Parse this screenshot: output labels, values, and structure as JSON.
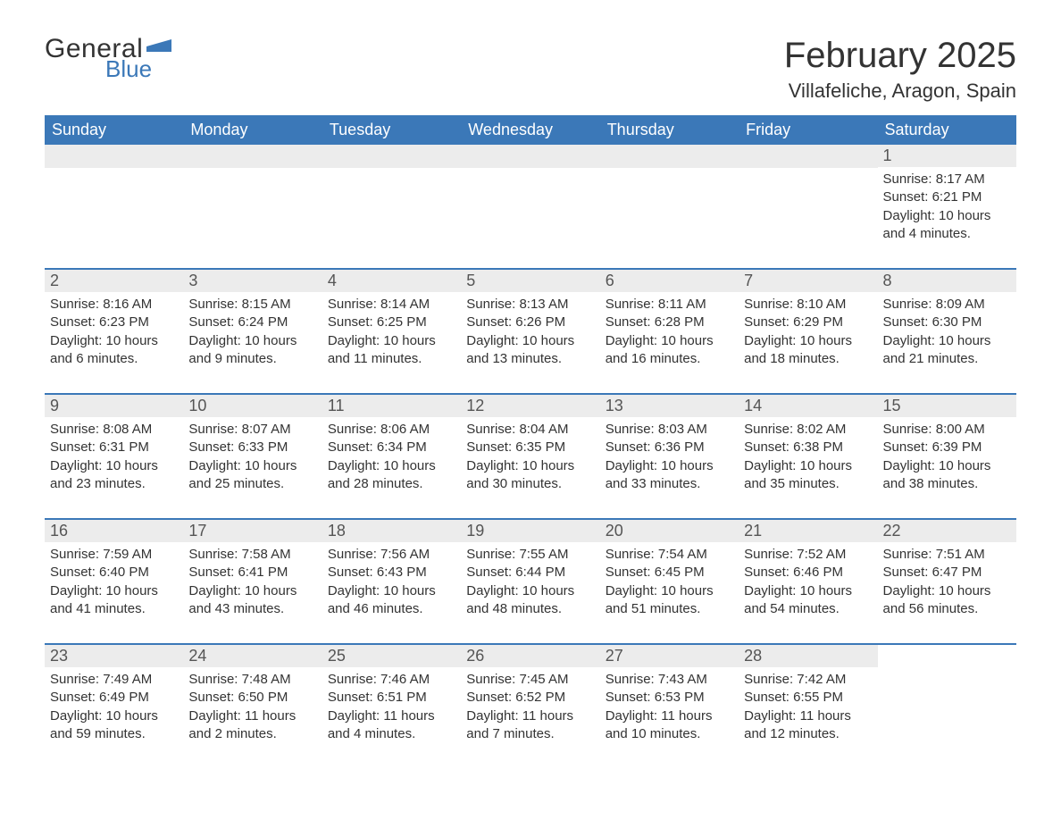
{
  "logo": {
    "text1": "General",
    "text2": "Blue",
    "flag_color": "#3b78b8"
  },
  "title": "February 2025",
  "location": "Villafeliche, Aragon, Spain",
  "colors": {
    "header_bg": "#3b78b8",
    "header_text": "#ffffff",
    "daynum_bg": "#ececec",
    "text": "#333333",
    "row_border": "#3b78b8"
  },
  "day_headers": [
    "Sunday",
    "Monday",
    "Tuesday",
    "Wednesday",
    "Thursday",
    "Friday",
    "Saturday"
  ],
  "weeks": [
    [
      null,
      null,
      null,
      null,
      null,
      null,
      {
        "n": "1",
        "sr": "Sunrise: 8:17 AM",
        "ss": "Sunset: 6:21 PM",
        "dl": "Daylight: 10 hours and 4 minutes."
      }
    ],
    [
      {
        "n": "2",
        "sr": "Sunrise: 8:16 AM",
        "ss": "Sunset: 6:23 PM",
        "dl": "Daylight: 10 hours and 6 minutes."
      },
      {
        "n": "3",
        "sr": "Sunrise: 8:15 AM",
        "ss": "Sunset: 6:24 PM",
        "dl": "Daylight: 10 hours and 9 minutes."
      },
      {
        "n": "4",
        "sr": "Sunrise: 8:14 AM",
        "ss": "Sunset: 6:25 PM",
        "dl": "Daylight: 10 hours and 11 minutes."
      },
      {
        "n": "5",
        "sr": "Sunrise: 8:13 AM",
        "ss": "Sunset: 6:26 PM",
        "dl": "Daylight: 10 hours and 13 minutes."
      },
      {
        "n": "6",
        "sr": "Sunrise: 8:11 AM",
        "ss": "Sunset: 6:28 PM",
        "dl": "Daylight: 10 hours and 16 minutes."
      },
      {
        "n": "7",
        "sr": "Sunrise: 8:10 AM",
        "ss": "Sunset: 6:29 PM",
        "dl": "Daylight: 10 hours and 18 minutes."
      },
      {
        "n": "8",
        "sr": "Sunrise: 8:09 AM",
        "ss": "Sunset: 6:30 PM",
        "dl": "Daylight: 10 hours and 21 minutes."
      }
    ],
    [
      {
        "n": "9",
        "sr": "Sunrise: 8:08 AM",
        "ss": "Sunset: 6:31 PM",
        "dl": "Daylight: 10 hours and 23 minutes."
      },
      {
        "n": "10",
        "sr": "Sunrise: 8:07 AM",
        "ss": "Sunset: 6:33 PM",
        "dl": "Daylight: 10 hours and 25 minutes."
      },
      {
        "n": "11",
        "sr": "Sunrise: 8:06 AM",
        "ss": "Sunset: 6:34 PM",
        "dl": "Daylight: 10 hours and 28 minutes."
      },
      {
        "n": "12",
        "sr": "Sunrise: 8:04 AM",
        "ss": "Sunset: 6:35 PM",
        "dl": "Daylight: 10 hours and 30 minutes."
      },
      {
        "n": "13",
        "sr": "Sunrise: 8:03 AM",
        "ss": "Sunset: 6:36 PM",
        "dl": "Daylight: 10 hours and 33 minutes."
      },
      {
        "n": "14",
        "sr": "Sunrise: 8:02 AM",
        "ss": "Sunset: 6:38 PM",
        "dl": "Daylight: 10 hours and 35 minutes."
      },
      {
        "n": "15",
        "sr": "Sunrise: 8:00 AM",
        "ss": "Sunset: 6:39 PM",
        "dl": "Daylight: 10 hours and 38 minutes."
      }
    ],
    [
      {
        "n": "16",
        "sr": "Sunrise: 7:59 AM",
        "ss": "Sunset: 6:40 PM",
        "dl": "Daylight: 10 hours and 41 minutes."
      },
      {
        "n": "17",
        "sr": "Sunrise: 7:58 AM",
        "ss": "Sunset: 6:41 PM",
        "dl": "Daylight: 10 hours and 43 minutes."
      },
      {
        "n": "18",
        "sr": "Sunrise: 7:56 AM",
        "ss": "Sunset: 6:43 PM",
        "dl": "Daylight: 10 hours and 46 minutes."
      },
      {
        "n": "19",
        "sr": "Sunrise: 7:55 AM",
        "ss": "Sunset: 6:44 PM",
        "dl": "Daylight: 10 hours and 48 minutes."
      },
      {
        "n": "20",
        "sr": "Sunrise: 7:54 AM",
        "ss": "Sunset: 6:45 PM",
        "dl": "Daylight: 10 hours and 51 minutes."
      },
      {
        "n": "21",
        "sr": "Sunrise: 7:52 AM",
        "ss": "Sunset: 6:46 PM",
        "dl": "Daylight: 10 hours and 54 minutes."
      },
      {
        "n": "22",
        "sr": "Sunrise: 7:51 AM",
        "ss": "Sunset: 6:47 PM",
        "dl": "Daylight: 10 hours and 56 minutes."
      }
    ],
    [
      {
        "n": "23",
        "sr": "Sunrise: 7:49 AM",
        "ss": "Sunset: 6:49 PM",
        "dl": "Daylight: 10 hours and 59 minutes."
      },
      {
        "n": "24",
        "sr": "Sunrise: 7:48 AM",
        "ss": "Sunset: 6:50 PM",
        "dl": "Daylight: 11 hours and 2 minutes."
      },
      {
        "n": "25",
        "sr": "Sunrise: 7:46 AM",
        "ss": "Sunset: 6:51 PM",
        "dl": "Daylight: 11 hours and 4 minutes."
      },
      {
        "n": "26",
        "sr": "Sunrise: 7:45 AM",
        "ss": "Sunset: 6:52 PM",
        "dl": "Daylight: 11 hours and 7 minutes."
      },
      {
        "n": "27",
        "sr": "Sunrise: 7:43 AM",
        "ss": "Sunset: 6:53 PM",
        "dl": "Daylight: 11 hours and 10 minutes."
      },
      {
        "n": "28",
        "sr": "Sunrise: 7:42 AM",
        "ss": "Sunset: 6:55 PM",
        "dl": "Daylight: 11 hours and 12 minutes."
      },
      null
    ]
  ]
}
